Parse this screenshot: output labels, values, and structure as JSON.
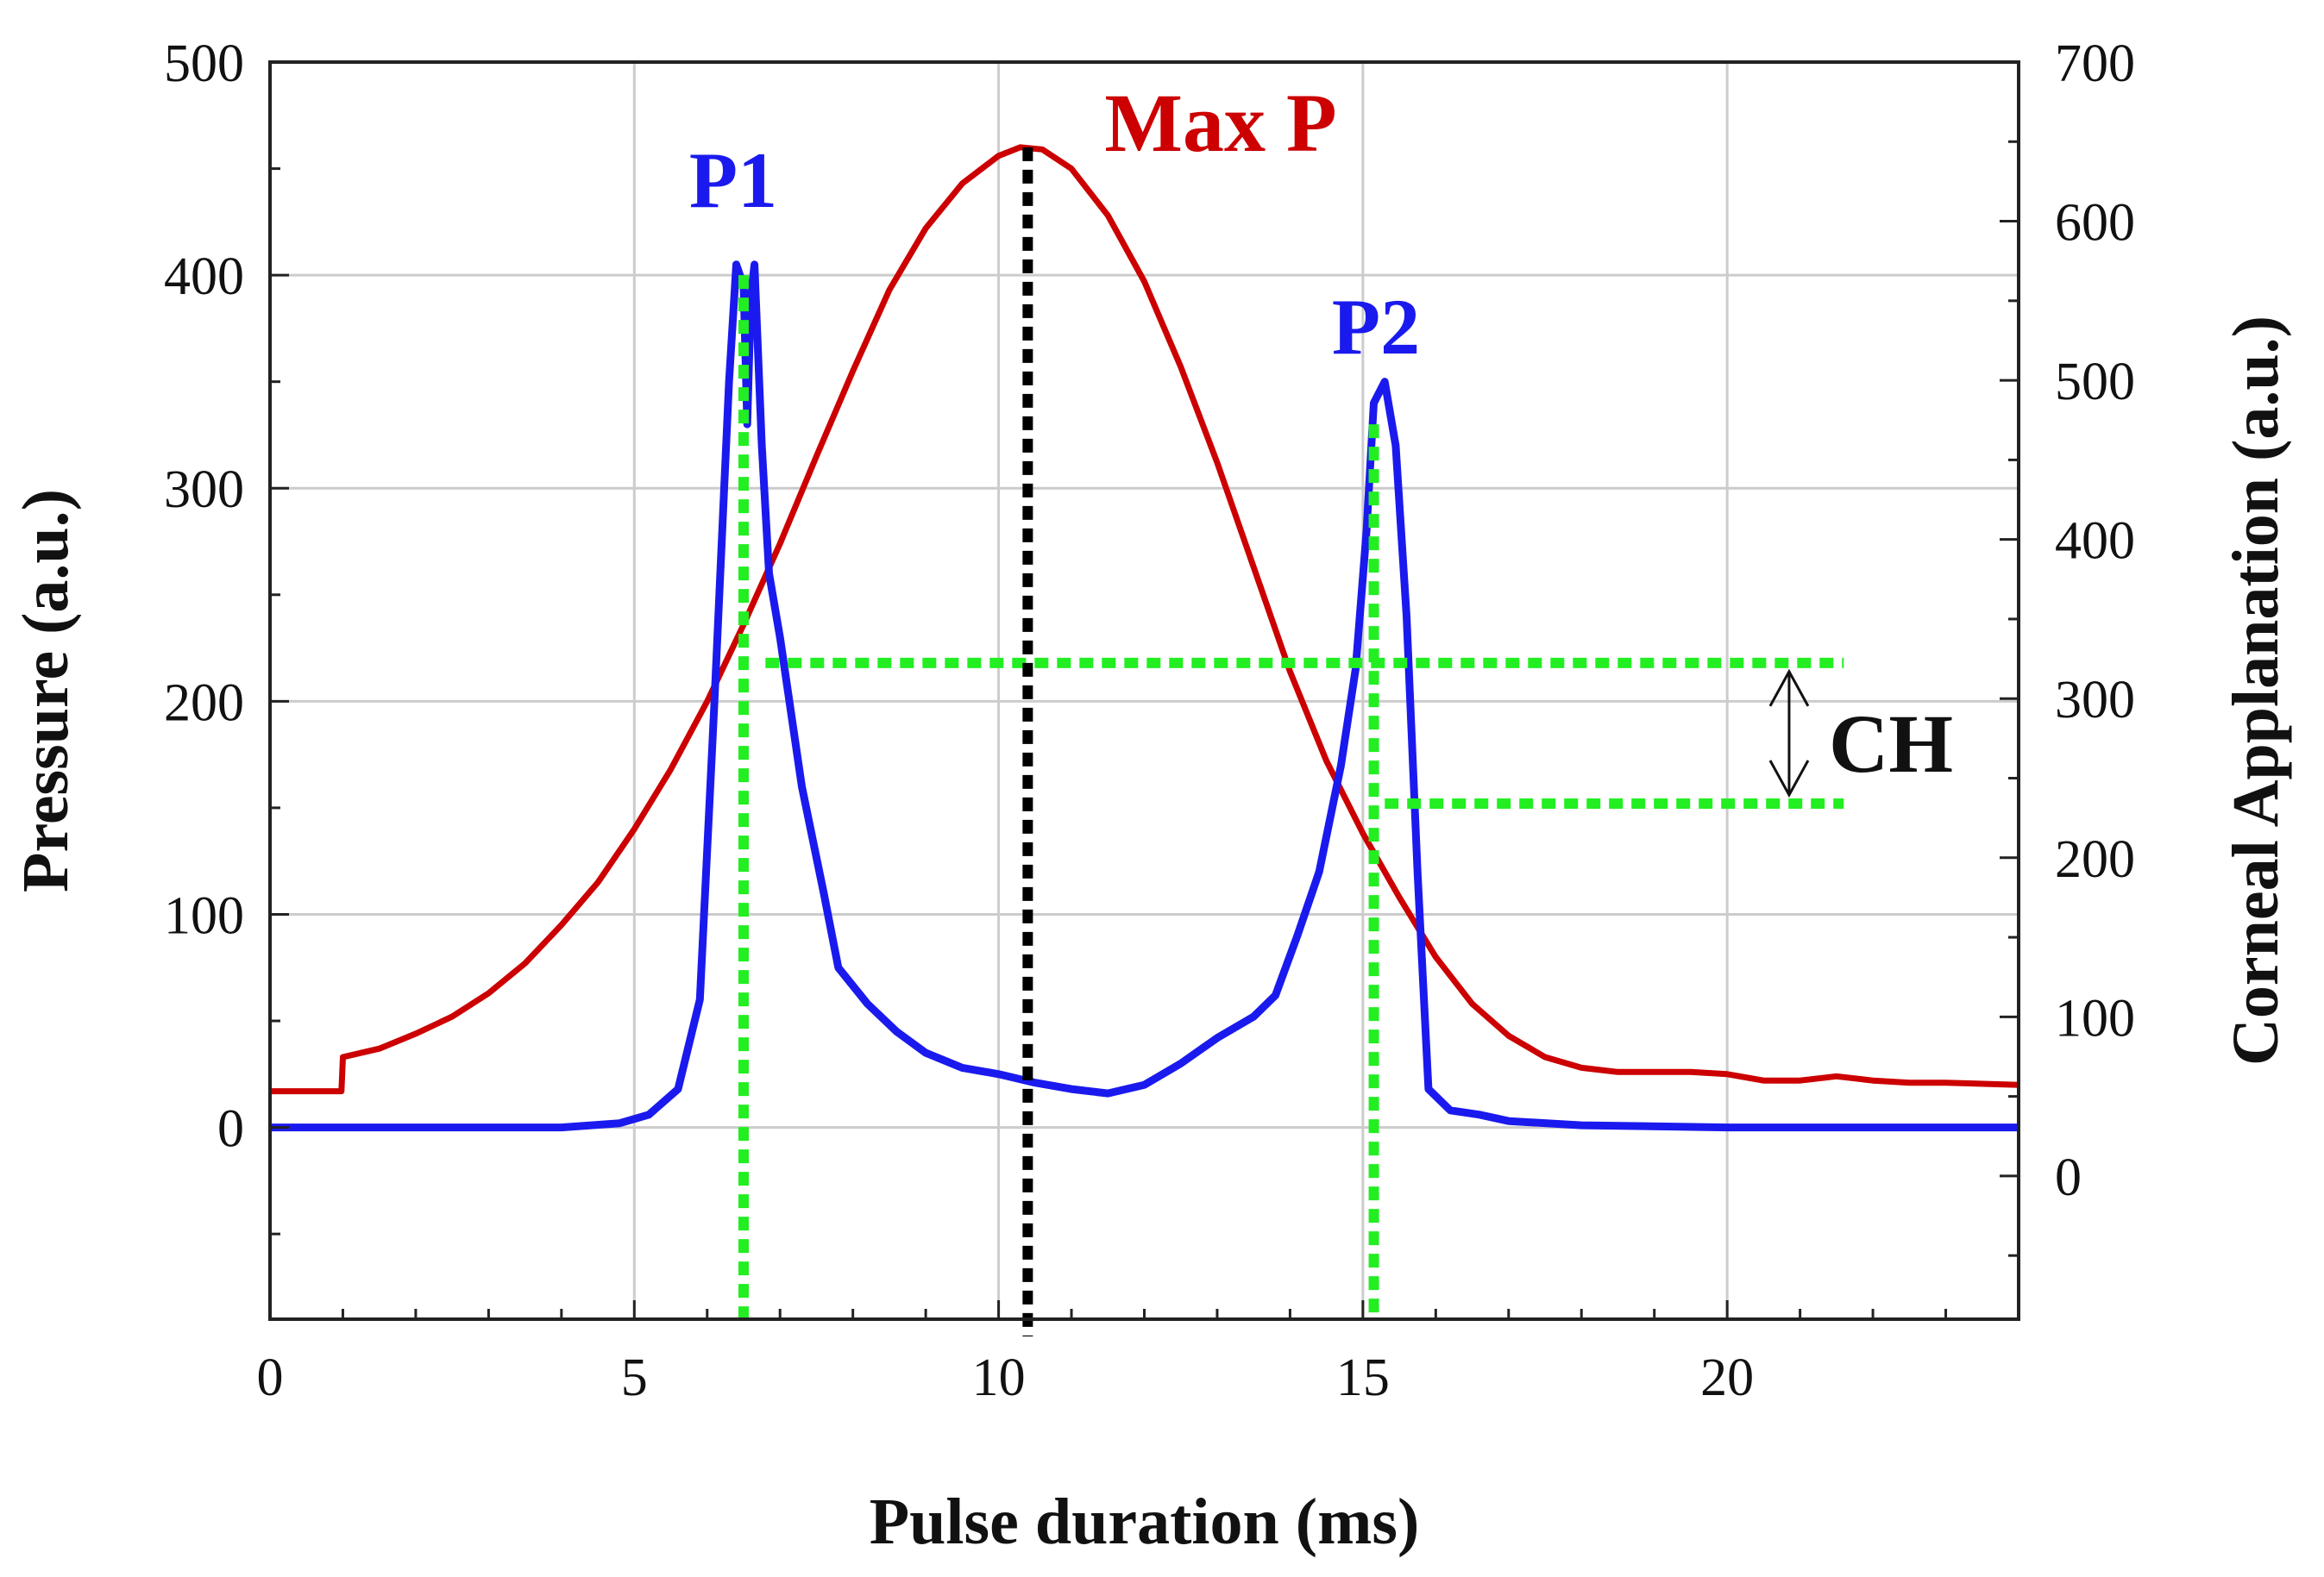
{
  "chart_data": {
    "type": "line",
    "xlabel": "Pulse duration (ms)",
    "ylabel_left": "Pressure (a.u.)",
    "ylabel_right": "Corneal Applanation (a.u.)",
    "xlim": [
      0,
      24
    ],
    "ylim_left": [
      -90,
      500
    ],
    "ylim_right": [
      -90,
      700
    ],
    "x_ticks": [
      0,
      5,
      10,
      15,
      20
    ],
    "y_ticks_left": [
      0,
      100,
      200,
      300,
      400,
      500
    ],
    "y_ticks_right": [
      0,
      100,
      200,
      300,
      400,
      500,
      600,
      700
    ],
    "grid": true,
    "colors": {
      "pressure": "#cc0000",
      "applanation": "#1a1aee",
      "markers": "#22ee22",
      "max_line": "#000000",
      "grid": "#cccccc"
    },
    "series": [
      {
        "axis": "left",
        "x": [
          0,
          0.5,
          0.98,
          1.0,
          1.5,
          2,
          2.5,
          3,
          3.5,
          4,
          4.5,
          5,
          5.5,
          6,
          6.5,
          7,
          7.5,
          8,
          8.5,
          9,
          9.5,
          10,
          10.3,
          10.6,
          11,
          11.5,
          12,
          12.5,
          13,
          13.5,
          14,
          14.5,
          15,
          15.5,
          16,
          16.5,
          17,
          17.5,
          18,
          18.5,
          19,
          19.5,
          20,
          20.5,
          21,
          21.5,
          22,
          22.5,
          23,
          24
        ],
        "y": [
          17,
          17,
          17,
          33,
          37,
          44,
          52,
          63,
          77,
          95,
          115,
          140,
          168,
          200,
          236,
          274,
          315,
          355,
          393,
          422,
          443,
          456,
          460,
          459,
          450,
          428,
          397,
          357,
          312,
          263,
          214,
          172,
          138,
          108,
          80,
          58,
          43,
          33,
          28,
          26,
          26,
          26,
          25,
          22,
          22,
          24,
          22,
          21,
          21,
          20
        ]
      },
      {
        "axis": "left",
        "x": [
          0,
          1,
          2,
          3,
          4,
          4.8,
          5.2,
          5.6,
          5.9,
          6.1,
          6.3,
          6.4,
          6.5,
          6.55,
          6.6,
          6.65,
          6.75,
          6.85,
          7.0,
          7.3,
          7.6,
          7.8,
          8.2,
          8.6,
          9,
          9.5,
          10,
          10.5,
          11,
          11.5,
          12,
          12.5,
          13,
          13.5,
          13.8,
          14.1,
          14.4,
          14.7,
          14.9,
          15.05,
          15.15,
          15.3,
          15.45,
          15.6,
          15.75,
          15.9,
          16.2,
          16.6,
          17,
          18,
          20,
          22,
          24
        ],
        "y": [
          0,
          0,
          0,
          0,
          0,
          2,
          6,
          18,
          60,
          200,
          350,
          405,
          395,
          330,
          390,
          405,
          320,
          260,
          230,
          160,
          110,
          75,
          58,
          45,
          35,
          28,
          25,
          21,
          18,
          16,
          20,
          30,
          42,
          52,
          62,
          90,
          120,
          170,
          215,
          280,
          340,
          350,
          320,
          240,
          120,
          18,
          8,
          6,
          3,
          1,
          0,
          0,
          0
        ]
      }
    ],
    "annotations": {
      "p1": "P1",
      "p2": "P2",
      "max_p": "Max P",
      "ch": "CH"
    },
    "marker_positions": {
      "p1_x": 6.5,
      "p2_x": 15.15,
      "max_x": 10.4,
      "upper_y": 218,
      "lower_y": 152
    }
  }
}
